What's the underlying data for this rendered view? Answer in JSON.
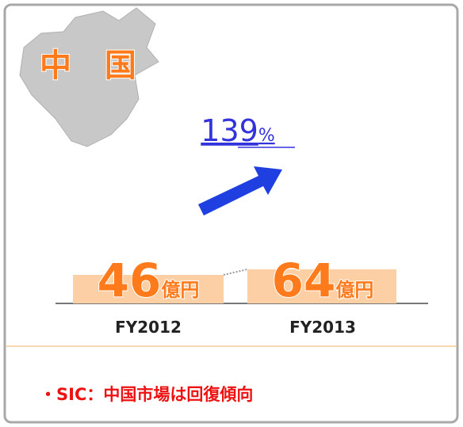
{
  "region": "中 国",
  "growth": {
    "value": "139",
    "unit": "%"
  },
  "items": [
    {
      "value": "46",
      "unit": "億円",
      "year": "FY2012"
    },
    {
      "value": "64",
      "unit": "億円",
      "year": "FY2013"
    }
  ],
  "note": "・SIC：中国市場は回復傾向"
}
